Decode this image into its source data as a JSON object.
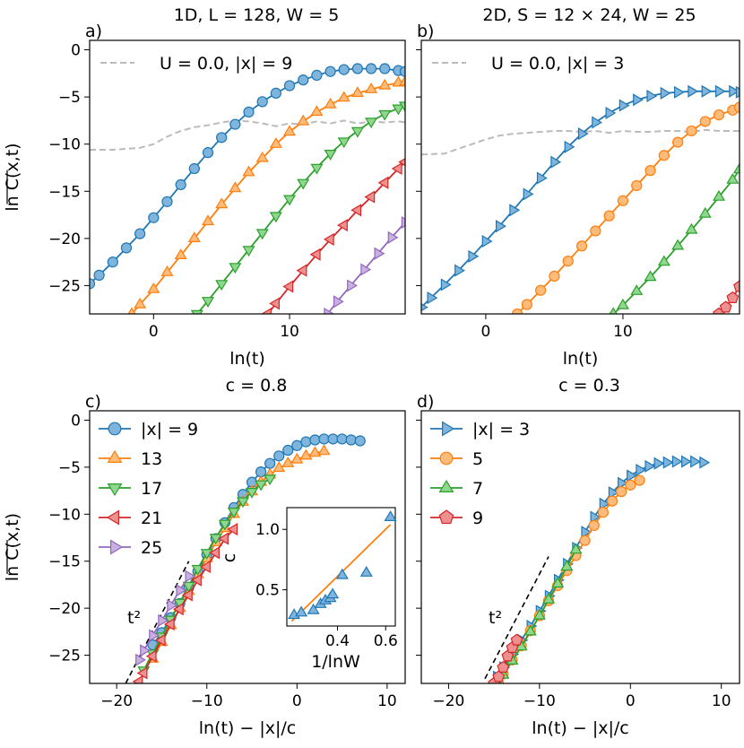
{
  "colors": {
    "blue": "#1f77b4",
    "blue_face": "#7fb5dc",
    "orange": "#ff7f0e",
    "orange_face": "#ffbb7a",
    "green": "#2ca02c",
    "green_face": "#8fd68f",
    "red": "#d62728",
    "red_face": "#ee9090",
    "purple": "#9467bd",
    "purple_face": "#c8b0e0",
    "gray": "#bbbbbb"
  },
  "chart_data": [
    {
      "panel": "a",
      "type": "line",
      "panel_label": "a)",
      "title": "1D, L = 128, W = 5",
      "xlabel": "ln(t)",
      "ylabel": "ln C(x,t)",
      "xlim": [
        -4.7,
        18.5
      ],
      "ylim": [
        -28,
        1
      ],
      "xticks": [
        0,
        10
      ],
      "xtick_labels": [
        "0",
        "10"
      ],
      "yticks": [
        0,
        -5,
        -10,
        -15,
        -20,
        -25
      ],
      "ytick_labels": [
        "0",
        "−5",
        "−10",
        "−15",
        "−20",
        "−25"
      ],
      "legend": "U = 0.0, |x| = 9",
      "legend_position": "top-left",
      "reference_curve": {
        "name": "U = 0.0, |x| = 9",
        "style": "dashed",
        "color": "gray",
        "x": [
          -4.7,
          -3,
          -1,
          0,
          1,
          2,
          3,
          4,
          5,
          6,
          7,
          8,
          9,
          10,
          11,
          12,
          13,
          14,
          15,
          16,
          17,
          18,
          18.5
        ],
        "y": [
          -10.6,
          -10.6,
          -10.4,
          -10.0,
          -9.2,
          -8.6,
          -8.2,
          -8.0,
          -7.7,
          -7.5,
          -7.6,
          -7.8,
          -8.1,
          -7.8,
          -7.9,
          -7.6,
          -7.8,
          -7.5,
          -7.8,
          -7.6,
          -7.7,
          -7.6,
          -7.7
        ]
      },
      "series": [
        {
          "name": "|x| = 9",
          "marker": "circle",
          "color": "blue",
          "x": [
            -4.7,
            -4,
            -3,
            -2,
            -1,
            0,
            1,
            2,
            3,
            4,
            5,
            6,
            7,
            8,
            9,
            10,
            11,
            12,
            13,
            14,
            15,
            16,
            17,
            18,
            18.5
          ],
          "y": [
            -24.8,
            -23.9,
            -22.5,
            -21.0,
            -19.5,
            -17.8,
            -16.1,
            -14.3,
            -12.6,
            -10.9,
            -9.3,
            -7.9,
            -6.6,
            -5.5,
            -4.6,
            -3.8,
            -3.2,
            -2.7,
            -2.3,
            -2.1,
            -2.0,
            -2.0,
            -2.0,
            -2.2,
            -2.3
          ]
        },
        {
          "name": "13",
          "marker": "triangle-up",
          "color": "orange",
          "x": [
            -1.6,
            -1,
            0,
            1,
            2,
            3,
            4,
            5,
            6,
            7,
            8,
            9,
            10,
            11,
            12,
            13,
            14,
            15,
            16,
            17,
            18,
            18.5
          ],
          "y": [
            -28,
            -27.0,
            -25.4,
            -23.6,
            -21.8,
            -20.0,
            -18.2,
            -16.4,
            -14.7,
            -13.0,
            -11.5,
            -10.0,
            -8.7,
            -7.6,
            -6.6,
            -5.8,
            -5.1,
            -4.6,
            -4.2,
            -3.8,
            -3.5,
            -3.4
          ]
        },
        {
          "name": "17",
          "marker": "triangle-down",
          "color": "green",
          "x": [
            3.2,
            4,
            5,
            6,
            7,
            8,
            9,
            10,
            11,
            12,
            13,
            14,
            15,
            16,
            17,
            18,
            18.5
          ],
          "y": [
            -28,
            -26.6,
            -24.8,
            -23.0,
            -21.2,
            -19.4,
            -17.6,
            -15.8,
            -14.1,
            -12.5,
            -11.0,
            -9.7,
            -8.6,
            -7.6,
            -6.8,
            -6.2,
            -5.9
          ]
        },
        {
          "name": "21",
          "marker": "triangle-left",
          "color": "red",
          "x": [
            8.4,
            9,
            10,
            11,
            12,
            13,
            14,
            15,
            16,
            17,
            18,
            18.5
          ],
          "y": [
            -28,
            -26.9,
            -25.1,
            -23.4,
            -21.7,
            -20.1,
            -18.6,
            -17.0,
            -15.6,
            -14.1,
            -12.6,
            -11.9
          ]
        },
        {
          "name": "25",
          "marker": "triangle-right",
          "color": "purple",
          "x": [
            12.8,
            13.5,
            14.5,
            15.5,
            16.5,
            17.5,
            18.5
          ],
          "y": [
            -28,
            -26.7,
            -25.0,
            -23.3,
            -21.6,
            -19.9,
            -18.3
          ]
        }
      ]
    },
    {
      "panel": "b",
      "type": "line",
      "panel_label": "b)",
      "title": "2D, S = 12 × 24, W = 25",
      "xlabel": "ln(t)",
      "ylabel": "",
      "xlim": [
        -4.7,
        18.5
      ],
      "ylim": [
        -28,
        1
      ],
      "xticks": [
        0,
        10
      ],
      "xtick_labels": [
        "0",
        "10"
      ],
      "yticks": [
        0,
        -5,
        -10,
        -15,
        -20,
        -25
      ],
      "legend": "U = 0.0, |x| = 3",
      "legend_position": "top-left",
      "reference_curve": {
        "name": "U = 0.0, |x| = 3",
        "style": "dashed",
        "color": "gray",
        "x": [
          -4.7,
          -3,
          -2,
          -1,
          0,
          1,
          2,
          3,
          4,
          5,
          6,
          7,
          8,
          9,
          10,
          11,
          12,
          13,
          14,
          15,
          16,
          17,
          18,
          18.5
        ],
        "y": [
          -11.1,
          -11.0,
          -10.5,
          -10.0,
          -9.5,
          -9.1,
          -8.9,
          -8.8,
          -8.7,
          -8.6,
          -8.6,
          -8.7,
          -8.6,
          -8.8,
          -8.6,
          -8.7,
          -8.7,
          -8.6,
          -8.6,
          -8.7,
          -8.5,
          -8.6,
          -8.6,
          -8.6
        ]
      },
      "series": [
        {
          "name": "|x| = 3",
          "marker": "triangle-right",
          "color": "blue",
          "x": [
            -4.7,
            -4,
            -3,
            -2,
            -1,
            0,
            1,
            2,
            3,
            4,
            5,
            6,
            7,
            8,
            9,
            10,
            11,
            12,
            13,
            14,
            15,
            16,
            17,
            18,
            18.5
          ],
          "y": [
            -27.3,
            -26.3,
            -24.9,
            -23.4,
            -21.9,
            -20.3,
            -18.7,
            -17.0,
            -15.3,
            -13.6,
            -11.9,
            -10.3,
            -8.9,
            -7.7,
            -6.7,
            -5.9,
            -5.3,
            -4.9,
            -4.6,
            -4.5,
            -4.4,
            -4.4,
            -4.4,
            -4.4,
            -4.5
          ]
        },
        {
          "name": "5",
          "marker": "circle",
          "color": "orange",
          "x": [
            2.3,
            3,
            4,
            5,
            6,
            7,
            8,
            9,
            10,
            11,
            12,
            13,
            14,
            15,
            16,
            17,
            18,
            18.5
          ],
          "y": [
            -28,
            -27.0,
            -25.5,
            -24.0,
            -22.4,
            -20.8,
            -19.2,
            -17.6,
            -16.0,
            -14.4,
            -12.8,
            -11.2,
            -9.8,
            -8.6,
            -7.6,
            -6.9,
            -6.4,
            -6.1
          ]
        },
        {
          "name": "7",
          "marker": "triangle-up",
          "color": "green",
          "x": [
            9.3,
            10,
            11,
            12,
            13,
            14,
            15,
            16,
            17,
            18,
            18.5
          ],
          "y": [
            -28,
            -27.1,
            -25.6,
            -24.1,
            -22.5,
            -20.8,
            -19.1,
            -17.4,
            -15.6,
            -13.8,
            -12.7
          ]
        },
        {
          "name": "9",
          "marker": "pentagon",
          "color": "red",
          "x": [
            17.0,
            17.5,
            18,
            18.5
          ],
          "y": [
            -28,
            -27.3,
            -26.3,
            -25.1
          ]
        }
      ]
    },
    {
      "panel": "c",
      "type": "line",
      "panel_label": "c)",
      "title": "c = 0.8",
      "xlabel": "ln(t) − |x|/c",
      "ylabel": "ln C(x,t)",
      "xlim": [
        -23,
        12
      ],
      "ylim": [
        -28,
        1
      ],
      "xticks": [
        -20,
        -10,
        0,
        10
      ],
      "xtick_labels": [
        "−20",
        "−10",
        "0",
        "10"
      ],
      "yticks": [
        0,
        -5,
        -10,
        -15,
        -20,
        -25
      ],
      "ytick_labels": [
        "0",
        "−5",
        "−10",
        "−15",
        "−20",
        "−25"
      ],
      "legend_labels": [
        "|x| = 9",
        "13",
        "17",
        "21",
        "25"
      ],
      "legend_position": "top-left",
      "annotation": "t²",
      "guide_line": {
        "x": [
          -19,
          -12
        ],
        "y": [
          -28,
          -15
        ]
      },
      "series": [
        {
          "name": "|x| = 9",
          "marker": "circle",
          "color": "blue",
          "x": [
            -16,
            -15,
            -14,
            -13,
            -12,
            -11,
            -10,
            -9,
            -8,
            -7,
            -6,
            -5,
            -4,
            -3,
            -2,
            -1,
            0,
            1,
            2,
            3,
            4,
            5,
            6,
            7
          ],
          "y": [
            -23.9,
            -22.6,
            -21.0,
            -19.5,
            -17.8,
            -16.1,
            -14.3,
            -12.6,
            -10.9,
            -9.3,
            -7.9,
            -6.6,
            -5.5,
            -4.6,
            -3.8,
            -3.2,
            -2.7,
            -2.3,
            -2.1,
            -2.0,
            -2.0,
            -2.0,
            -2.1,
            -2.2
          ]
        },
        {
          "name": "13",
          "marker": "triangle-up",
          "color": "orange",
          "x": [
            -16,
            -15,
            -14,
            -13,
            -12,
            -11,
            -10,
            -9,
            -8,
            -7,
            -6,
            -5,
            -4,
            -3,
            -2,
            -1,
            0,
            1,
            2,
            3
          ],
          "y": [
            -25.4,
            -23.6,
            -21.8,
            -20.0,
            -18.2,
            -16.4,
            -14.7,
            -13.0,
            -11.5,
            -10.0,
            -8.7,
            -7.6,
            -6.6,
            -5.8,
            -5.1,
            -4.6,
            -4.2,
            -3.8,
            -3.5,
            -3.3
          ]
        },
        {
          "name": "17",
          "marker": "triangle-down",
          "color": "green",
          "x": [
            -17,
            -16,
            -15,
            -14,
            -13,
            -12,
            -11,
            -10,
            -9,
            -8,
            -7,
            -6,
            -5,
            -4,
            -3
          ],
          "y": [
            -26.6,
            -24.8,
            -23.0,
            -21.2,
            -19.4,
            -17.6,
            -15.8,
            -14.1,
            -12.5,
            -11.0,
            -9.7,
            -8.6,
            -7.6,
            -6.8,
            -6.2
          ]
        },
        {
          "name": "21",
          "marker": "triangle-left",
          "color": "red",
          "x": [
            -17.5,
            -17,
            -16,
            -15,
            -14,
            -13,
            -12,
            -11,
            -10,
            -9,
            -8,
            -7
          ],
          "y": [
            -27.8,
            -26.9,
            -25.1,
            -23.4,
            -21.7,
            -20.1,
            -18.6,
            -17.0,
            -15.6,
            -14.1,
            -12.6,
            -11.6
          ]
        },
        {
          "name": "25",
          "marker": "triangle-right",
          "color": "purple",
          "x": [
            -17.5,
            -17,
            -16,
            -15,
            -14,
            -13,
            -12
          ],
          "y": [
            -25.5,
            -24.5,
            -22.9,
            -21.3,
            -19.7,
            -18.1,
            -16.6
          ]
        }
      ],
      "inset": {
        "type": "scatter",
        "xlabel": "1/lnW",
        "ylabel": "c",
        "xlim": [
          0.19,
          0.64
        ],
        "ylim": [
          0.2,
          1.18
        ],
        "xticks": [
          0.4,
          0.6
        ],
        "xtick_labels": [
          "0.4",
          "0.6"
        ],
        "yticks": [
          0.5,
          1.0
        ],
        "ytick_labels": [
          "0.5",
          "1.0"
        ],
        "points": {
          "x": [
            0.22,
            0.25,
            0.3,
            0.33,
            0.35,
            0.37,
            0.38,
            0.42,
            0.52,
            0.62
          ],
          "y": [
            0.29,
            0.31,
            0.33,
            0.38,
            0.41,
            0.43,
            0.46,
            0.62,
            0.64,
            1.1
          ]
        },
        "fit": {
          "x": [
            0.21,
            0.62
          ],
          "y": [
            0.24,
            1.04
          ]
        }
      }
    },
    {
      "panel": "d",
      "type": "line",
      "panel_label": "d)",
      "title": "c = 0.3",
      "xlabel": "ln(t) − |x|/c",
      "ylabel": "",
      "xlim": [
        -23,
        12
      ],
      "ylim": [
        -28,
        1
      ],
      "xticks": [
        -20,
        -10,
        0,
        10
      ],
      "xtick_labels": [
        "−20",
        "−10",
        "0",
        "10"
      ],
      "yticks": [
        0,
        -5,
        -10,
        -15,
        -20,
        -25
      ],
      "legend_labels": [
        "|x| = 3",
        "5",
        "7",
        "9"
      ],
      "legend_position": "top-left",
      "annotation": "t²",
      "guide_line": {
        "x": [
          -16,
          -9
        ],
        "y": [
          -27.5,
          -14.5
        ]
      },
      "series": [
        {
          "name": "|x| = 3",
          "marker": "triangle-right",
          "color": "blue",
          "x": [
            -14.7,
            -14,
            -13,
            -12,
            -11,
            -10,
            -9,
            -8,
            -7,
            -6,
            -5,
            -4,
            -3,
            -2,
            -1,
            0,
            1,
            2,
            3,
            4,
            5,
            6,
            7,
            8
          ],
          "y": [
            -27.3,
            -26.3,
            -24.9,
            -23.4,
            -21.9,
            -20.3,
            -18.7,
            -17.0,
            -15.3,
            -13.6,
            -11.9,
            -10.3,
            -8.9,
            -7.7,
            -6.7,
            -5.9,
            -5.3,
            -4.9,
            -4.6,
            -4.5,
            -4.4,
            -4.4,
            -4.4,
            -4.5
          ]
        },
        {
          "name": "5",
          "marker": "circle",
          "color": "orange",
          "x": [
            -14.5,
            -14,
            -13,
            -12,
            -11,
            -10,
            -9,
            -8,
            -7,
            -6,
            -5,
            -4,
            -3,
            -2,
            -1,
            0,
            1
          ],
          "y": [
            -28,
            -27.0,
            -25.5,
            -24.0,
            -22.4,
            -20.8,
            -19.2,
            -17.6,
            -16.0,
            -14.4,
            -12.8,
            -11.2,
            -9.8,
            -8.6,
            -7.6,
            -6.9,
            -6.4
          ]
        },
        {
          "name": "7",
          "marker": "triangle-up",
          "color": "green",
          "x": [
            -14.6,
            -14,
            -13,
            -12,
            -11,
            -10,
            -9,
            -8,
            -7,
            -6
          ],
          "y": [
            -28,
            -27.1,
            -25.6,
            -24.1,
            -22.5,
            -20.8,
            -19.1,
            -17.4,
            -15.6,
            -13.8
          ]
        },
        {
          "name": "9",
          "marker": "pentagon",
          "color": "red",
          "x": [
            -15,
            -14.5,
            -14,
            -13.5,
            -13,
            -12.5
          ],
          "y": [
            -28,
            -27.3,
            -26.3,
            -25.1,
            -24.2,
            -23.4
          ]
        }
      ]
    }
  ]
}
